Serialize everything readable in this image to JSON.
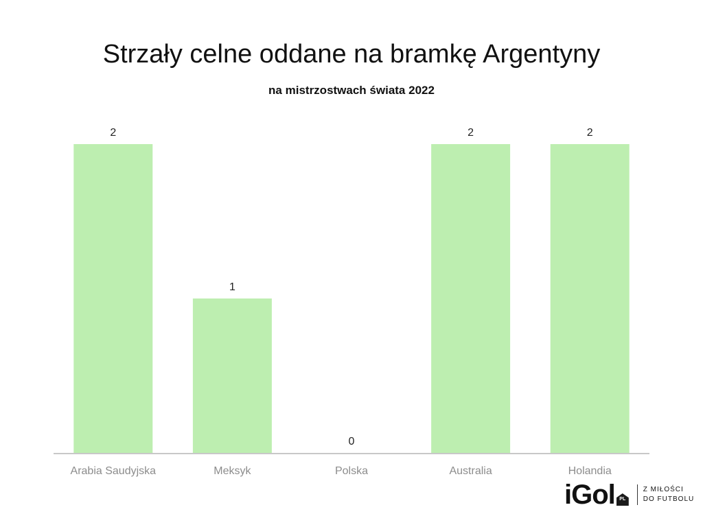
{
  "chart_data": {
    "type": "bar",
    "title": "Strzały celne oddane na bramkę Argentyny",
    "subtitle": "na mistrzostwach świata 2022",
    "categories": [
      "Arabia Saudyjska",
      "Meksyk",
      "Polska",
      "Australia",
      "Holandia"
    ],
    "values": [
      2,
      1,
      0,
      2,
      2
    ],
    "ylim": [
      0,
      2
    ],
    "grid": false,
    "bar_color": "#bdeeb0",
    "axis_color": "#c8c8c8"
  },
  "branding": {
    "logo_text": "iGol",
    "logo_badge": "PL",
    "tagline_line1": "Z MIŁOŚCI",
    "tagline_line2": "DO FUTBOLU"
  }
}
